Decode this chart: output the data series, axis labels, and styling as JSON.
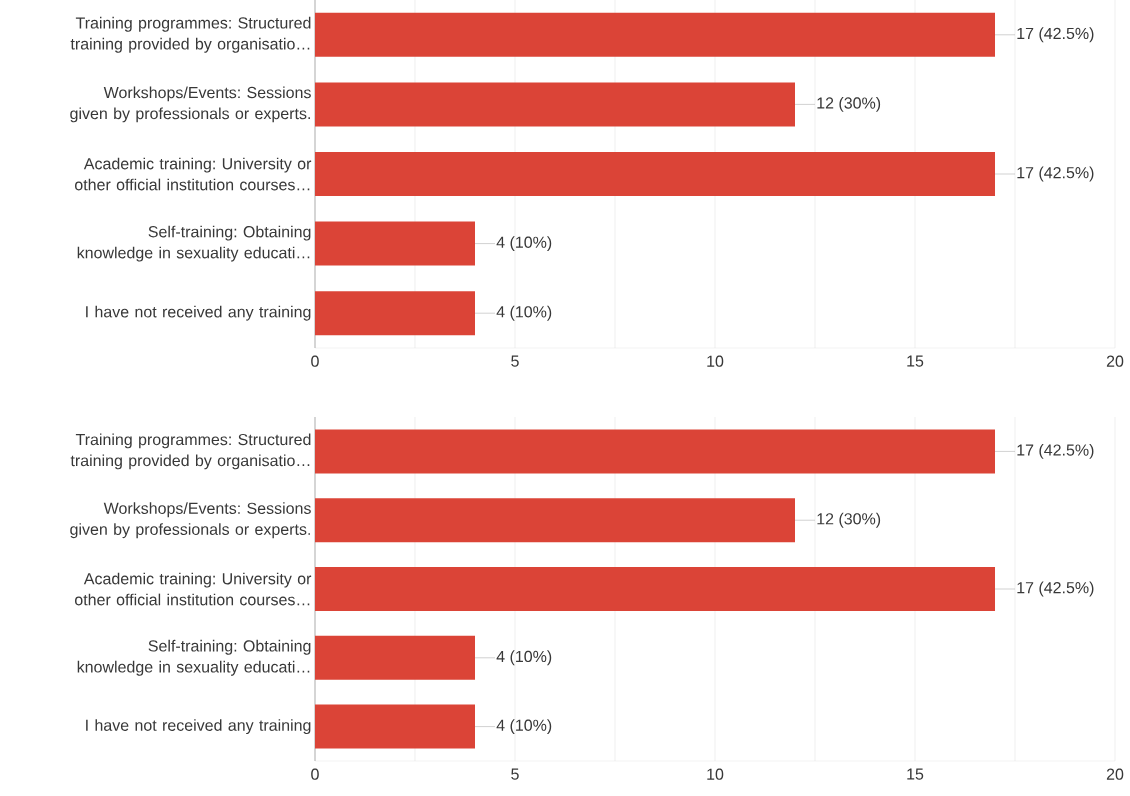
{
  "chart_data": [
    {
      "type": "bar",
      "orientation": "horizontal",
      "categories": [
        "Training programmes: Structured training provided by organisatio…",
        "Workshops/Events: Sessions given by professionals or experts.",
        "Academic training: University or other official institution courses…",
        "Self-training: Obtaining knowledge in sexuality educati…",
        "I have not received any training"
      ],
      "values": [
        17,
        12,
        17,
        4,
        4
      ],
      "color": "#db4437",
      "value_labels": [
        "17 (42.5%)",
        "12 (30%)",
        "17 (42.5%)",
        "4 (10%)",
        "4 (10%)"
      ],
      "xlim": [
        0,
        20
      ],
      "xticks": [
        0,
        {
          "value": 2.5,
          "label": null
        },
        5,
        {
          "value": 7.5,
          "label": null
        },
        10,
        {
          "value": 12.5,
          "label": null
        },
        15,
        {
          "value": 17.5,
          "label": null
        },
        20
      ],
      "grid": "x"
    },
    {
      "type": "bar",
      "orientation": "horizontal",
      "categories": [
        "Training programmes: Structured training provided by organisatio…",
        "Workshops/Events: Sessions given by professionals or experts.",
        "Academic training: University or other official institution courses…",
        "Self-training: Obtaining knowledge in sexuality educati…",
        "I have not received any training"
      ],
      "values": [
        17,
        12,
        17,
        4,
        4
      ],
      "color": "#db4437",
      "value_labels": [
        "17 (42.5%)",
        "12 (30%)",
        "17 (42.5%)",
        "4 (10%)",
        "4 (10%)"
      ],
      "xlim": [
        0,
        20
      ],
      "xticks": [
        0,
        {
          "value": 2.5,
          "label": null
        },
        5,
        {
          "value": 7.5,
          "label": null
        },
        10,
        {
          "value": 12.5,
          "label": null
        },
        15,
        {
          "value": 17.5,
          "label": null
        },
        20
      ],
      "grid": "x"
    }
  ]
}
